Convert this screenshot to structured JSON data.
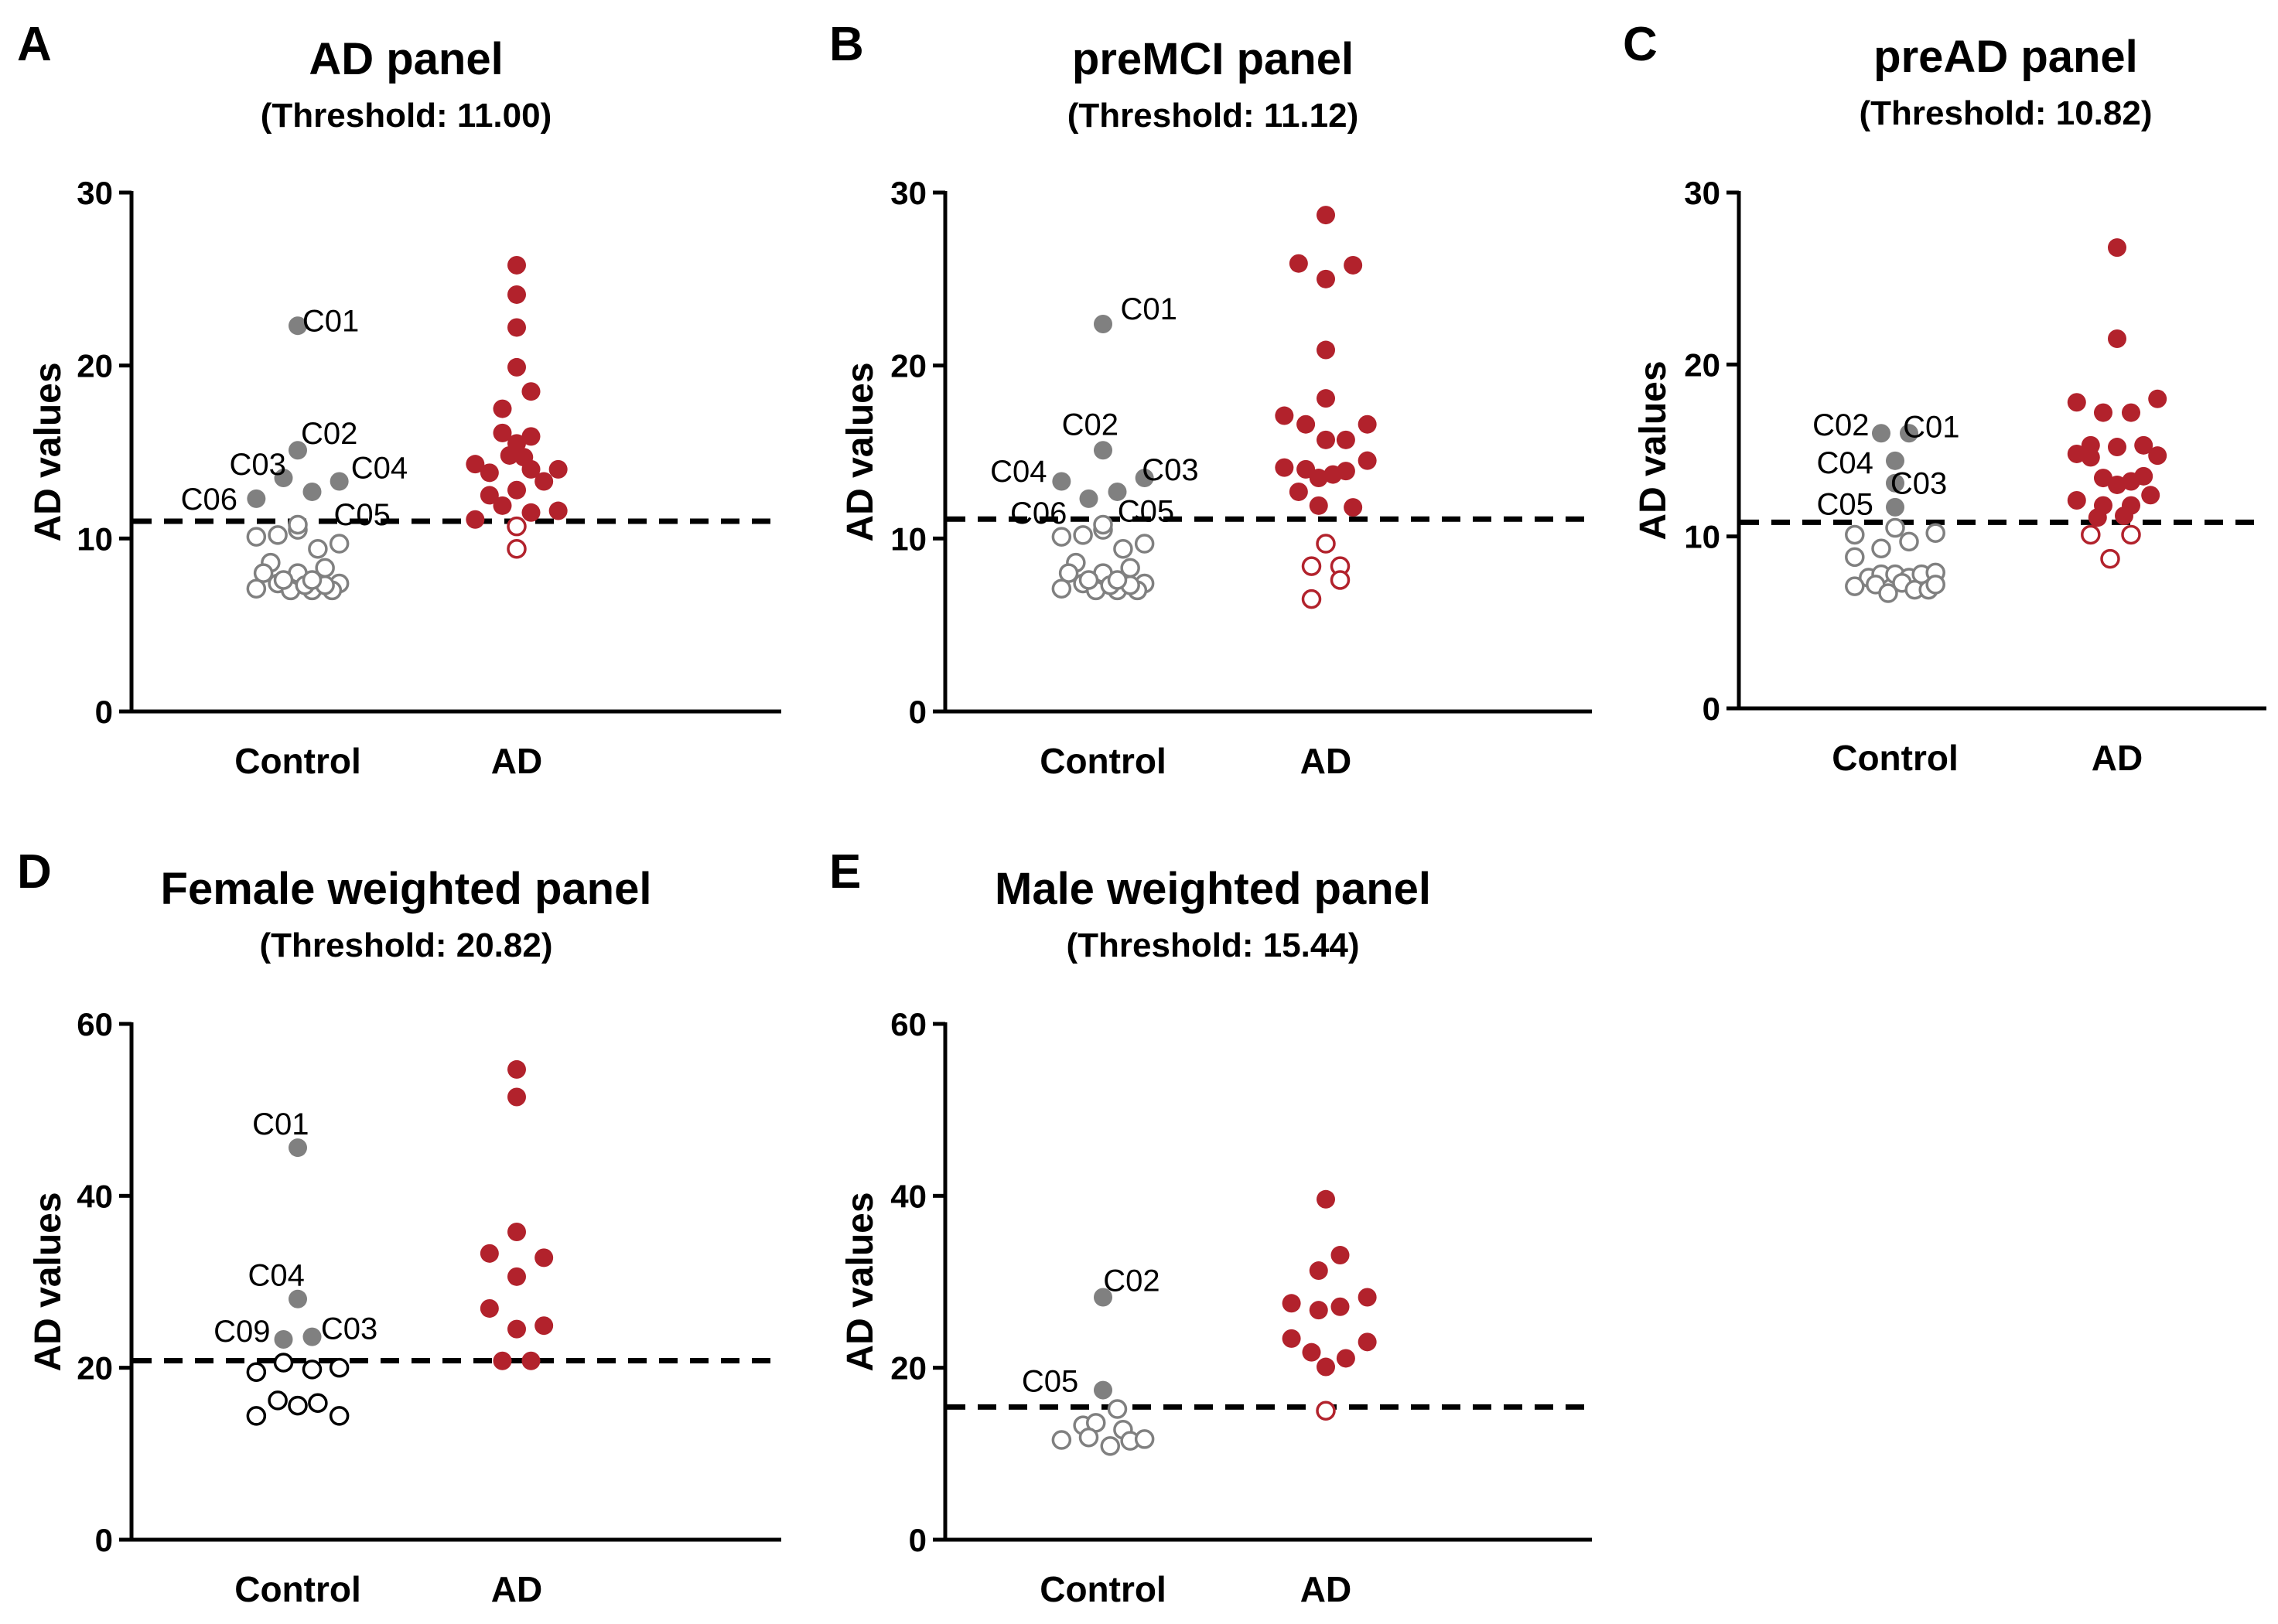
{
  "figure": {
    "colors": {
      "control": "#808080",
      "ad": "#B2222C",
      "axis": "#000000",
      "threshold": "#000000"
    }
  },
  "chart_data": [
    {
      "type": "scatter",
      "letter": "A",
      "title": "AD panel",
      "subtitle": "(Threshold: 11.00)",
      "ylabel": "AD values",
      "categories": [
        "Control",
        "AD"
      ],
      "ylim": [
        0,
        30
      ],
      "yticks": [
        0,
        10,
        20,
        30
      ],
      "threshold": 11.0,
      "control_filled": [
        {
          "x": 0.0,
          "y": 22.3,
          "label": "C01"
        },
        {
          "x": 0.0,
          "y": 15.1,
          "label": "C02"
        },
        {
          "x": -0.1,
          "y": 13.5,
          "label": "C03"
        },
        {
          "x": 0.29,
          "y": 13.3,
          "label": "C04"
        },
        {
          "x": 0.1,
          "y": 12.7,
          "label": "C05"
        },
        {
          "x": -0.29,
          "y": 12.3,
          "label": "C06"
        }
      ],
      "control_open": [
        {
          "x": -0.29,
          "y": 10.1
        },
        {
          "x": -0.14,
          "y": 10.2
        },
        {
          "x": 0.0,
          "y": 10.5
        },
        {
          "x": 0.0,
          "y": 10.8
        },
        {
          "x": 0.14,
          "y": 9.4
        },
        {
          "x": 0.29,
          "y": 9.7
        },
        {
          "x": -0.19,
          "y": 8.6
        },
        {
          "x": -0.24,
          "y": 8.0
        },
        {
          "x": 0.0,
          "y": 8.0
        },
        {
          "x": 0.19,
          "y": 8.3
        },
        {
          "x": -0.14,
          "y": 7.4
        },
        {
          "x": 0.29,
          "y": 7.4
        },
        {
          "x": -0.29,
          "y": 7.1
        },
        {
          "x": -0.05,
          "y": 7.0
        },
        {
          "x": 0.1,
          "y": 7.0
        },
        {
          "x": 0.24,
          "y": 7.0
        },
        {
          "x": 0.05,
          "y": 7.3
        },
        {
          "x": 0.19,
          "y": 7.3
        },
        {
          "x": -0.1,
          "y": 7.6
        },
        {
          "x": 0.1,
          "y": 7.6
        }
      ],
      "ad_filled": [
        {
          "x": 0.0,
          "y": 25.8
        },
        {
          "x": 0.0,
          "y": 24.1
        },
        {
          "x": 0.0,
          "y": 22.2
        },
        {
          "x": 0.0,
          "y": 19.9
        },
        {
          "x": 0.1,
          "y": 18.5
        },
        {
          "x": -0.1,
          "y": 17.5
        },
        {
          "x": -0.1,
          "y": 16.1
        },
        {
          "x": 0.1,
          "y": 15.9
        },
        {
          "x": 0.0,
          "y": 15.5
        },
        {
          "x": -0.05,
          "y": 14.8
        },
        {
          "x": 0.05,
          "y": 14.7
        },
        {
          "x": -0.29,
          "y": 14.3
        },
        {
          "x": -0.19,
          "y": 13.8
        },
        {
          "x": 0.1,
          "y": 14.0
        },
        {
          "x": 0.29,
          "y": 14.0
        },
        {
          "x": 0.19,
          "y": 13.3
        },
        {
          "x": -0.19,
          "y": 12.5
        },
        {
          "x": 0.0,
          "y": 12.8
        },
        {
          "x": -0.1,
          "y": 11.9
        },
        {
          "x": 0.1,
          "y": 11.5
        },
        {
          "x": 0.29,
          "y": 11.6
        },
        {
          "x": -0.29,
          "y": 11.1
        }
      ],
      "ad_open": [
        {
          "x": 0.0,
          "y": 10.7
        },
        {
          "x": 0.0,
          "y": 9.4
        }
      ],
      "labels": [
        {
          "text": "C01",
          "x": 0.23,
          "y": 22.6
        },
        {
          "text": "C02",
          "x": 0.22,
          "y": 16.1
        },
        {
          "text": "C03",
          "x": -0.28,
          "y": 14.3
        },
        {
          "text": "C04",
          "x": 0.57,
          "y": 14.1
        },
        {
          "text": "C05",
          "x": 0.45,
          "y": 11.4
        },
        {
          "text": "C06",
          "x": -0.62,
          "y": 12.3
        }
      ]
    },
    {
      "type": "scatter",
      "letter": "B",
      "title": "preMCI panel",
      "subtitle": "(Threshold: 11.12)",
      "ylabel": "AD values",
      "categories": [
        "Control",
        "AD"
      ],
      "ylim": [
        0,
        30
      ],
      "yticks": [
        0,
        10,
        20,
        30
      ],
      "threshold": 11.12,
      "control_filled": [
        {
          "x": 0.0,
          "y": 22.4,
          "label": "C01"
        },
        {
          "x": 0.0,
          "y": 15.1,
          "label": "C02"
        },
        {
          "x": 0.29,
          "y": 13.5,
          "label": "C03"
        },
        {
          "x": -0.29,
          "y": 13.3,
          "label": "C04"
        },
        {
          "x": 0.1,
          "y": 12.7,
          "label": "C05"
        },
        {
          "x": -0.1,
          "y": 12.3,
          "label": "C06"
        }
      ],
      "control_open": [
        {
          "x": -0.29,
          "y": 10.1
        },
        {
          "x": -0.14,
          "y": 10.2
        },
        {
          "x": 0.0,
          "y": 10.5
        },
        {
          "x": 0.0,
          "y": 10.8
        },
        {
          "x": 0.14,
          "y": 9.4
        },
        {
          "x": 0.29,
          "y": 9.7
        },
        {
          "x": -0.19,
          "y": 8.6
        },
        {
          "x": -0.24,
          "y": 8.0
        },
        {
          "x": 0.0,
          "y": 8.0
        },
        {
          "x": 0.19,
          "y": 8.3
        },
        {
          "x": -0.14,
          "y": 7.4
        },
        {
          "x": 0.29,
          "y": 7.4
        },
        {
          "x": -0.29,
          "y": 7.1
        },
        {
          "x": -0.05,
          "y": 7.0
        },
        {
          "x": 0.1,
          "y": 7.0
        },
        {
          "x": 0.24,
          "y": 7.0
        },
        {
          "x": 0.05,
          "y": 7.3
        },
        {
          "x": 0.19,
          "y": 7.3
        },
        {
          "x": -0.1,
          "y": 7.6
        },
        {
          "x": 0.1,
          "y": 7.6
        }
      ],
      "ad_filled": [
        {
          "x": 0.0,
          "y": 28.7
        },
        {
          "x": -0.19,
          "y": 25.9
        },
        {
          "x": 0.0,
          "y": 25.0
        },
        {
          "x": 0.19,
          "y": 25.8
        },
        {
          "x": 0.0,
          "y": 20.9
        },
        {
          "x": 0.0,
          "y": 18.1
        },
        {
          "x": -0.29,
          "y": 17.1
        },
        {
          "x": -0.14,
          "y": 16.6
        },
        {
          "x": 0.29,
          "y": 16.6
        },
        {
          "x": 0.0,
          "y": 15.7
        },
        {
          "x": 0.14,
          "y": 15.7
        },
        {
          "x": -0.29,
          "y": 14.1
        },
        {
          "x": -0.14,
          "y": 14.0
        },
        {
          "x": -0.05,
          "y": 13.5
        },
        {
          "x": 0.05,
          "y": 13.7
        },
        {
          "x": 0.14,
          "y": 13.9
        },
        {
          "x": 0.29,
          "y": 14.5
        },
        {
          "x": -0.19,
          "y": 12.7
        },
        {
          "x": -0.05,
          "y": 11.9
        },
        {
          "x": 0.19,
          "y": 11.8
        }
      ],
      "ad_open": [
        {
          "x": 0.0,
          "y": 9.7
        },
        {
          "x": -0.1,
          "y": 8.4
        },
        {
          "x": 0.1,
          "y": 8.4
        },
        {
          "x": 0.1,
          "y": 7.6
        },
        {
          "x": -0.1,
          "y": 6.5
        }
      ],
      "labels": [
        {
          "text": "C01",
          "x": 0.32,
          "y": 23.3
        },
        {
          "text": "C02",
          "x": -0.09,
          "y": 16.6
        },
        {
          "text": "C03",
          "x": 0.47,
          "y": 14.0
        },
        {
          "text": "C04",
          "x": -0.59,
          "y": 13.9
        },
        {
          "text": "C05",
          "x": 0.3,
          "y": 11.6
        },
        {
          "text": "C06",
          "x": -0.45,
          "y": 11.5
        }
      ]
    },
    {
      "type": "scatter",
      "letter": "C",
      "title": "preAD panel",
      "subtitle": "(Threshold: 10.82)",
      "ylabel": "AD values",
      "categories": [
        "Control",
        "AD"
      ],
      "ylim": [
        0,
        30
      ],
      "yticks": [
        0,
        10,
        20,
        30
      ],
      "threshold": 10.82,
      "control_filled": [
        {
          "x": 0.1,
          "y": 16.0,
          "label": "C01"
        },
        {
          "x": -0.1,
          "y": 16.0,
          "label": "C02"
        },
        {
          "x": 0.0,
          "y": 13.1,
          "label": "C03"
        },
        {
          "x": 0.0,
          "y": 14.4,
          "label": "C04"
        },
        {
          "x": 0.0,
          "y": 11.7,
          "label": "C05"
        }
      ],
      "control_open": [
        {
          "x": -0.29,
          "y": 10.1
        },
        {
          "x": 0.0,
          "y": 10.5
        },
        {
          "x": 0.29,
          "y": 10.2
        },
        {
          "x": -0.1,
          "y": 9.3
        },
        {
          "x": 0.1,
          "y": 9.7
        },
        {
          "x": -0.29,
          "y": 8.8
        },
        {
          "x": -0.19,
          "y": 7.6
        },
        {
          "x": -0.1,
          "y": 7.8
        },
        {
          "x": 0.0,
          "y": 7.8
        },
        {
          "x": 0.1,
          "y": 7.6
        },
        {
          "x": 0.19,
          "y": 7.8
        },
        {
          "x": 0.29,
          "y": 7.9
        },
        {
          "x": -0.29,
          "y": 7.1
        },
        {
          "x": -0.14,
          "y": 7.2
        },
        {
          "x": -0.05,
          "y": 6.7
        },
        {
          "x": 0.05,
          "y": 7.3
        },
        {
          "x": 0.14,
          "y": 6.9
        },
        {
          "x": 0.24,
          "y": 6.9
        },
        {
          "x": 0.29,
          "y": 7.2
        }
      ],
      "ad_filled": [
        {
          "x": 0.0,
          "y": 26.8
        },
        {
          "x": 0.0,
          "y": 21.5
        },
        {
          "x": -0.29,
          "y": 17.8
        },
        {
          "x": -0.1,
          "y": 17.2
        },
        {
          "x": 0.1,
          "y": 17.2
        },
        {
          "x": 0.29,
          "y": 18.0
        },
        {
          "x": -0.19,
          "y": 15.3
        },
        {
          "x": 0.0,
          "y": 15.2
        },
        {
          "x": 0.19,
          "y": 15.3
        },
        {
          "x": -0.29,
          "y": 14.8
        },
        {
          "x": -0.19,
          "y": 14.6
        },
        {
          "x": 0.29,
          "y": 14.7
        },
        {
          "x": -0.1,
          "y": 13.4
        },
        {
          "x": 0.0,
          "y": 13.0
        },
        {
          "x": 0.1,
          "y": 13.2
        },
        {
          "x": 0.19,
          "y": 13.5
        },
        {
          "x": -0.29,
          "y": 12.1
        },
        {
          "x": -0.1,
          "y": 11.8
        },
        {
          "x": 0.1,
          "y": 11.8
        },
        {
          "x": 0.24,
          "y": 12.4
        },
        {
          "x": -0.14,
          "y": 11.1
        },
        {
          "x": 0.05,
          "y": 11.2
        }
      ],
      "ad_open": [
        {
          "x": -0.19,
          "y": 10.1
        },
        {
          "x": 0.1,
          "y": 10.1
        },
        {
          "x": -0.05,
          "y": 8.7
        }
      ],
      "labels": [
        {
          "text": "C01",
          "x": 0.26,
          "y": 16.4
        },
        {
          "text": "C02",
          "x": -0.39,
          "y": 16.5
        },
        {
          "text": "C03",
          "x": 0.17,
          "y": 13.1
        },
        {
          "text": "C04",
          "x": -0.36,
          "y": 14.3
        },
        {
          "text": "C05",
          "x": -0.36,
          "y": 11.9
        }
      ]
    },
    {
      "type": "scatter",
      "letter": "D",
      "title": "Female weighted panel",
      "subtitle": "(Threshold: 20.82)",
      "ylabel": "AD values",
      "categories": [
        "Control",
        "AD"
      ],
      "ylim": [
        0,
        60
      ],
      "yticks": [
        0,
        20,
        40,
        60
      ],
      "threshold": 20.82,
      "control_filled": [
        {
          "x": 0.0,
          "y": 45.6,
          "label": "C01"
        },
        {
          "x": 0.0,
          "y": 28.0,
          "label": "C04"
        },
        {
          "x": -0.1,
          "y": 23.3,
          "label": "C09"
        },
        {
          "x": 0.1,
          "y": 23.6,
          "label": "C03"
        }
      ],
      "control_open": [
        {
          "x": -0.1,
          "y": 20.6
        },
        {
          "x": -0.29,
          "y": 19.5
        },
        {
          "x": 0.1,
          "y": 19.8
        },
        {
          "x": 0.29,
          "y": 20.0
        },
        {
          "x": -0.14,
          "y": 16.2
        },
        {
          "x": 0.0,
          "y": 15.6
        },
        {
          "x": 0.14,
          "y": 15.9
        },
        {
          "x": -0.29,
          "y": 14.4
        },
        {
          "x": 0.29,
          "y": 14.4
        }
      ],
      "control_open_color": "#000000",
      "ad_filled": [
        {
          "x": 0.0,
          "y": 54.7
        },
        {
          "x": 0.0,
          "y": 51.5
        },
        {
          "x": -0.19,
          "y": 33.3
        },
        {
          "x": 0.0,
          "y": 35.8
        },
        {
          "x": 0.19,
          "y": 32.8
        },
        {
          "x": 0.0,
          "y": 30.6
        },
        {
          "x": -0.19,
          "y": 26.9
        },
        {
          "x": 0.0,
          "y": 24.5
        },
        {
          "x": 0.19,
          "y": 24.9
        },
        {
          "x": -0.1,
          "y": 20.8
        },
        {
          "x": 0.1,
          "y": 20.8
        }
      ],
      "ad_open": [],
      "labels": [
        {
          "text": "C01",
          "x": -0.12,
          "y": 48.4
        },
        {
          "text": "C04",
          "x": -0.15,
          "y": 30.8
        },
        {
          "text": "C09",
          "x": -0.39,
          "y": 24.3
        },
        {
          "text": "C03",
          "x": 0.36,
          "y": 24.6
        }
      ]
    },
    {
      "type": "scatter",
      "letter": "E",
      "title": "Male weighted panel",
      "subtitle": "(Threshold: 15.44)",
      "ylabel": "AD values",
      "categories": [
        "Control",
        "AD"
      ],
      "ylim": [
        0,
        60
      ],
      "yticks": [
        0,
        20,
        40,
        60
      ],
      "threshold": 15.44,
      "control_filled": [
        {
          "x": 0.0,
          "y": 28.2,
          "label": "C02"
        },
        {
          "x": 0.0,
          "y": 17.4,
          "label": "C05"
        }
      ],
      "control_open": [
        {
          "x": 0.1,
          "y": 15.2
        },
        {
          "x": -0.14,
          "y": 13.3
        },
        {
          "x": -0.05,
          "y": 13.6
        },
        {
          "x": 0.14,
          "y": 12.8
        },
        {
          "x": -0.29,
          "y": 11.6
        },
        {
          "x": -0.1,
          "y": 11.9
        },
        {
          "x": 0.05,
          "y": 10.9
        },
        {
          "x": 0.19,
          "y": 11.5
        },
        {
          "x": 0.29,
          "y": 11.7
        }
      ],
      "ad_filled": [
        {
          "x": 0.0,
          "y": 39.6
        },
        {
          "x": -0.05,
          "y": 31.3
        },
        {
          "x": 0.1,
          "y": 33.1
        },
        {
          "x": -0.24,
          "y": 27.5
        },
        {
          "x": 0.1,
          "y": 27.1
        },
        {
          "x": 0.29,
          "y": 28.2
        },
        {
          "x": -0.05,
          "y": 26.7
        },
        {
          "x": -0.24,
          "y": 23.4
        },
        {
          "x": 0.29,
          "y": 23.0
        },
        {
          "x": -0.1,
          "y": 21.8
        },
        {
          "x": 0.14,
          "y": 21.1
        },
        {
          "x": 0.0,
          "y": 20.1
        }
      ],
      "ad_open": [
        {
          "x": 0.0,
          "y": 15.0
        }
      ],
      "labels": [
        {
          "text": "C02",
          "x": 0.2,
          "y": 30.2
        },
        {
          "text": "C05",
          "x": -0.37,
          "y": 18.5
        }
      ]
    }
  ]
}
